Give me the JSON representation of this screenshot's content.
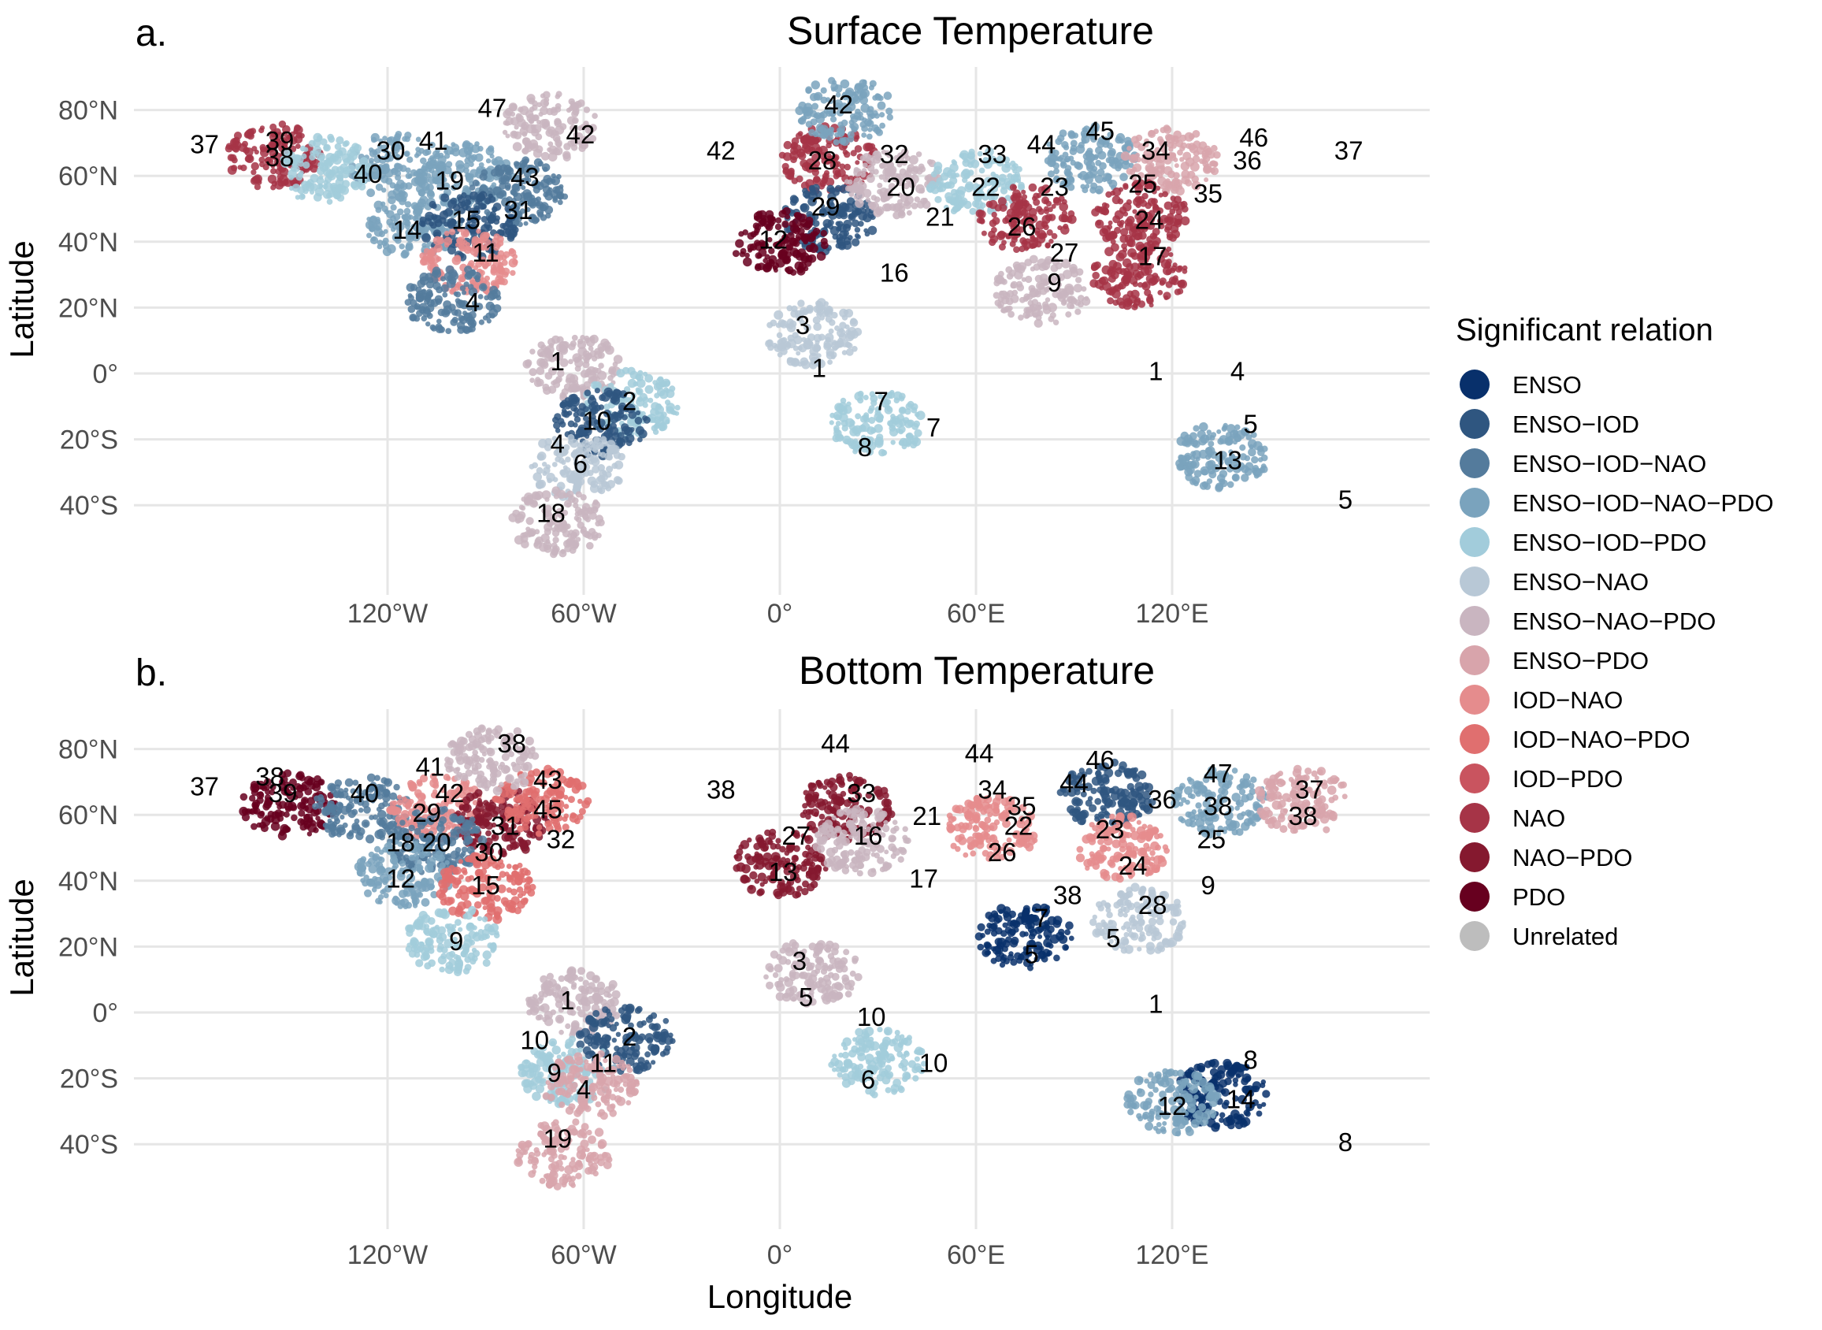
{
  "x_axis_title": "Longitude",
  "y_axis_title": "Latitude",
  "legend": {
    "title": "Significant relation",
    "items": [
      {
        "label": "ENSO",
        "color": "#08306b"
      },
      {
        "label": "ENSO−IOD",
        "color": "#2f5680"
      },
      {
        "label": "ENSO−IOD−NAO",
        "color": "#547b9c"
      },
      {
        "label": "ENSO−IOD−NAO−PDO",
        "color": "#7aa3bd"
      },
      {
        "label": "ENSO−IOD−PDO",
        "color": "#a2ccdb"
      },
      {
        "label": "ENSO−NAO",
        "color": "#b8c8d6"
      },
      {
        "label": "ENSO−NAO−PDO",
        "color": "#c9b5c0"
      },
      {
        "label": "ENSO−PDO",
        "color": "#d8a4ab"
      },
      {
        "label": "IOD−NAO",
        "color": "#e58c8d"
      },
      {
        "label": "IOD−NAO−PDO",
        "color": "#e06f6f"
      },
      {
        "label": "IOD−PDO",
        "color": "#c9545f"
      },
      {
        "label": "NAO",
        "color": "#a63447"
      },
      {
        "label": "NAO−PDO",
        "color": "#85192f"
      },
      {
        "label": "PDO",
        "color": "#67001f"
      },
      {
        "label": "Unrelated",
        "color": "#bdbdbd"
      }
    ]
  },
  "panels": [
    {
      "letter": "a.",
      "title": "Surface Temperature",
      "x_ticks": [
        {
          "lon": -120,
          "label": "120°W"
        },
        {
          "lon": -60,
          "label": "60°W"
        },
        {
          "lon": 0,
          "label": "0°"
        },
        {
          "lon": 60,
          "label": "60°E"
        },
        {
          "lon": 120,
          "label": "120°E"
        }
      ],
      "y_ticks": [
        {
          "lat": 80,
          "label": "80°N"
        },
        {
          "lat": 60,
          "label": "60°N"
        },
        {
          "lat": 40,
          "label": "40°N"
        },
        {
          "lat": 20,
          "label": "20°N"
        },
        {
          "lat": 0,
          "label": "0°"
        },
        {
          "lat": -20,
          "label": "20°S"
        },
        {
          "lat": -40,
          "label": "40°S"
        }
      ],
      "regions": [
        {
          "lon": -117,
          "lat": 63,
          "fill": "#7aa3bd"
        },
        {
          "lon": -96,
          "lat": 60,
          "fill": "#7aa3bd"
        },
        {
          "lon": -80,
          "lat": 55,
          "fill": "#547b9c"
        },
        {
          "lon": -112,
          "lat": 45,
          "fill": "#7aa3bd"
        },
        {
          "lon": -95,
          "lat": 45,
          "fill": "#2f5680"
        },
        {
          "lon": -95,
          "lat": 34,
          "fill": "#e58c8d"
        },
        {
          "lon": -100,
          "lat": 22,
          "fill": "#547b9c"
        },
        {
          "lon": -155,
          "lat": 66,
          "fill": "#a63447"
        },
        {
          "lon": -140,
          "lat": 62,
          "fill": "#a2ccdb"
        },
        {
          "lon": -70,
          "lat": 75,
          "fill": "#c9b5c0"
        },
        {
          "lon": -63,
          "lat": 2,
          "fill": "#c9b5c0"
        },
        {
          "lon": -45,
          "lat": -9,
          "fill": "#a2ccdb"
        },
        {
          "lon": -55,
          "lat": -15,
          "fill": "#2f5680"
        },
        {
          "lon": -62,
          "lat": -28,
          "fill": "#b8c8d6"
        },
        {
          "lon": -68,
          "lat": -45,
          "fill": "#c9b5c0"
        },
        {
          "lon": 15,
          "lat": 65,
          "fill": "#a63447"
        },
        {
          "lon": 15,
          "lat": 47,
          "fill": "#2f5680"
        },
        {
          "lon": 0,
          "lat": 40,
          "fill": "#67001f"
        },
        {
          "lon": 35,
          "lat": 58,
          "fill": "#c9b5c0"
        },
        {
          "lon": 60,
          "lat": 58,
          "fill": "#a2ccdb"
        },
        {
          "lon": 75,
          "lat": 47,
          "fill": "#a63447"
        },
        {
          "lon": 95,
          "lat": 65,
          "fill": "#7aa3bd"
        },
        {
          "lon": 120,
          "lat": 65,
          "fill": "#d8a4ab"
        },
        {
          "lon": 110,
          "lat": 48,
          "fill": "#a63447"
        },
        {
          "lon": 110,
          "lat": 30,
          "fill": "#a63447"
        },
        {
          "lon": 80,
          "lat": 25,
          "fill": "#c9b5c0"
        },
        {
          "lon": 10,
          "lat": 12,
          "fill": "#b8c8d6"
        },
        {
          "lon": 30,
          "lat": -15,
          "fill": "#a2ccdb"
        },
        {
          "lon": 135,
          "lat": -25,
          "fill": "#7aa3bd"
        },
        {
          "lon": 20,
          "lat": 80,
          "fill": "#7aa3bd"
        }
      ],
      "labels": [
        {
          "text": "37",
          "lon": -176,
          "lat": 69
        },
        {
          "text": "39",
          "lon": -153,
          "lat": 70
        },
        {
          "text": "38",
          "lon": -153,
          "lat": 65
        },
        {
          "text": "30",
          "lon": -119,
          "lat": 67
        },
        {
          "text": "41",
          "lon": -106,
          "lat": 70
        },
        {
          "text": "40",
          "lon": -126,
          "lat": 60
        },
        {
          "text": "19",
          "lon": -101,
          "lat": 58
        },
        {
          "text": "47",
          "lon": -88,
          "lat": 80
        },
        {
          "text": "42",
          "lon": -61,
          "lat": 72
        },
        {
          "text": "43",
          "lon": -78,
          "lat": 59
        },
        {
          "text": "31",
          "lon": -80,
          "lat": 49
        },
        {
          "text": "15",
          "lon": -96,
          "lat": 46
        },
        {
          "text": "14",
          "lon": -114,
          "lat": 43
        },
        {
          "text": "11",
          "lon": -90,
          "lat": 36
        },
        {
          "text": "4",
          "lon": -94,
          "lat": 21
        },
        {
          "text": "1",
          "lon": -68,
          "lat": 3
        },
        {
          "text": "2",
          "lon": -46,
          "lat": -9
        },
        {
          "text": "10",
          "lon": -56,
          "lat": -15
        },
        {
          "text": "4",
          "lon": -68,
          "lat": -22
        },
        {
          "text": "6",
          "lon": -61,
          "lat": -28
        },
        {
          "text": "18",
          "lon": -70,
          "lat": -43
        },
        {
          "text": "42",
          "lon": -18,
          "lat": 67
        },
        {
          "text": "42",
          "lon": 18,
          "lat": 81
        },
        {
          "text": "28",
          "lon": 13,
          "lat": 64
        },
        {
          "text": "29",
          "lon": 14,
          "lat": 50
        },
        {
          "text": "12",
          "lon": -2,
          "lat": 40
        },
        {
          "text": "32",
          "lon": 35,
          "lat": 66
        },
        {
          "text": "33",
          "lon": 65,
          "lat": 66
        },
        {
          "text": "44",
          "lon": 80,
          "lat": 69
        },
        {
          "text": "45",
          "lon": 98,
          "lat": 73
        },
        {
          "text": "34",
          "lon": 115,
          "lat": 67
        },
        {
          "text": "46",
          "lon": 145,
          "lat": 71
        },
        {
          "text": "36",
          "lon": 143,
          "lat": 64
        },
        {
          "text": "37",
          "lon": 174,
          "lat": 67
        },
        {
          "text": "20",
          "lon": 37,
          "lat": 56
        },
        {
          "text": "22",
          "lon": 63,
          "lat": 56
        },
        {
          "text": "23",
          "lon": 84,
          "lat": 56
        },
        {
          "text": "25",
          "lon": 111,
          "lat": 57
        },
        {
          "text": "35",
          "lon": 131,
          "lat": 54
        },
        {
          "text": "21",
          "lon": 49,
          "lat": 47
        },
        {
          "text": "26",
          "lon": 74,
          "lat": 44
        },
        {
          "text": "24",
          "lon": 113,
          "lat": 46
        },
        {
          "text": "27",
          "lon": 87,
          "lat": 36
        },
        {
          "text": "17",
          "lon": 114,
          "lat": 35
        },
        {
          "text": "16",
          "lon": 35,
          "lat": 30
        },
        {
          "text": "9",
          "lon": 84,
          "lat": 27
        },
        {
          "text": "3",
          "lon": 7,
          "lat": 14
        },
        {
          "text": "1",
          "lon": 12,
          "lat": 1
        },
        {
          "text": "7",
          "lon": 31,
          "lat": -9
        },
        {
          "text": "7",
          "lon": 47,
          "lat": -17
        },
        {
          "text": "8",
          "lon": 26,
          "lat": -23
        },
        {
          "text": "1",
          "lon": 115,
          "lat": 0
        },
        {
          "text": "4",
          "lon": 140,
          "lat": 0
        },
        {
          "text": "5",
          "lon": 144,
          "lat": -16
        },
        {
          "text": "13",
          "lon": 137,
          "lat": -27
        },
        {
          "text": "5",
          "lon": 173,
          "lat": -39
        }
      ]
    },
    {
      "letter": "b.",
      "title": "Bottom Temperature",
      "x_ticks": [
        {
          "lon": -120,
          "label": "120°W"
        },
        {
          "lon": -60,
          "label": "60°W"
        },
        {
          "lon": 0,
          "label": "0°"
        },
        {
          "lon": 60,
          "label": "60°E"
        },
        {
          "lon": 120,
          "label": "120°E"
        }
      ],
      "y_ticks": [
        {
          "lat": 80,
          "label": "80°N"
        },
        {
          "lat": 60,
          "label": "60°N"
        },
        {
          "lat": 40,
          "label": "40°N"
        },
        {
          "lat": 20,
          "label": "20°N"
        },
        {
          "lat": 0,
          "label": "0°"
        },
        {
          "lat": -20,
          "label": "20°S"
        },
        {
          "lat": -40,
          "label": "40°S"
        }
      ],
      "regions": [
        {
          "lon": -150,
          "lat": 63,
          "fill": "#67001f"
        },
        {
          "lon": -128,
          "lat": 62,
          "fill": "#547b9c"
        },
        {
          "lon": -105,
          "lat": 62,
          "fill": "#e58c8d"
        },
        {
          "lon": -85,
          "lat": 58,
          "fill": "#85192f"
        },
        {
          "lon": -73,
          "lat": 64,
          "fill": "#e06f6f"
        },
        {
          "lon": -105,
          "lat": 52,
          "fill": "#547b9c"
        },
        {
          "lon": -115,
          "lat": 42,
          "fill": "#7aa3bd"
        },
        {
          "lon": -90,
          "lat": 38,
          "fill": "#e06f6f"
        },
        {
          "lon": -100,
          "lat": 22,
          "fill": "#a2ccdb"
        },
        {
          "lon": -88,
          "lat": 77,
          "fill": "#c9b5c0"
        },
        {
          "lon": -63,
          "lat": 3,
          "fill": "#c9b5c0"
        },
        {
          "lon": -47,
          "lat": -8,
          "fill": "#2f5680"
        },
        {
          "lon": -65,
          "lat": -18,
          "fill": "#a2ccdb"
        },
        {
          "lon": -58,
          "lat": -22,
          "fill": "#d8a4ab"
        },
        {
          "lon": -66,
          "lat": -43,
          "fill": "#d8a4ab"
        },
        {
          "lon": 20,
          "lat": 62,
          "fill": "#85192f"
        },
        {
          "lon": 0,
          "lat": 45,
          "fill": "#85192f"
        },
        {
          "lon": 25,
          "lat": 52,
          "fill": "#c9b5c0"
        },
        {
          "lon": 65,
          "lat": 56,
          "fill": "#e58c8d"
        },
        {
          "lon": 100,
          "lat": 66,
          "fill": "#2f5680"
        },
        {
          "lon": 135,
          "lat": 64,
          "fill": "#7aa3bd"
        },
        {
          "lon": 160,
          "lat": 64,
          "fill": "#d8a4ab"
        },
        {
          "lon": 105,
          "lat": 50,
          "fill": "#e58c8d"
        },
        {
          "lon": 75,
          "lat": 23,
          "fill": "#08306b"
        },
        {
          "lon": 110,
          "lat": 28,
          "fill": "#b8c8d6"
        },
        {
          "lon": 10,
          "lat": 12,
          "fill": "#c9b5c0"
        },
        {
          "lon": 30,
          "lat": -15,
          "fill": "#a2ccdb"
        },
        {
          "lon": 135,
          "lat": -25,
          "fill": "#08306b"
        },
        {
          "lon": 120,
          "lat": -27,
          "fill": "#7aa3bd"
        }
      ],
      "labels": [
        {
          "text": "37",
          "lon": -176,
          "lat": 68
        },
        {
          "text": "38",
          "lon": -156,
          "lat": 71
        },
        {
          "text": "39",
          "lon": -152,
          "lat": 66
        },
        {
          "text": "40",
          "lon": -127,
          "lat": 66
        },
        {
          "text": "41",
          "lon": -107,
          "lat": 74
        },
        {
          "text": "42",
          "lon": -101,
          "lat": 66
        },
        {
          "text": "38",
          "lon": -82,
          "lat": 81
        },
        {
          "text": "43",
          "lon": -71,
          "lat": 70
        },
        {
          "text": "38",
          "lon": -18,
          "lat": 67
        },
        {
          "text": "29",
          "lon": -108,
          "lat": 60
        },
        {
          "text": "45",
          "lon": -71,
          "lat": 61
        },
        {
          "text": "31",
          "lon": -84,
          "lat": 56
        },
        {
          "text": "32",
          "lon": -67,
          "lat": 52
        },
        {
          "text": "18",
          "lon": -116,
          "lat": 51
        },
        {
          "text": "20",
          "lon": -105,
          "lat": 51
        },
        {
          "text": "30",
          "lon": -89,
          "lat": 48
        },
        {
          "text": "12",
          "lon": -116,
          "lat": 40
        },
        {
          "text": "15",
          "lon": -90,
          "lat": 38
        },
        {
          "text": "9",
          "lon": -99,
          "lat": 21
        },
        {
          "text": "1",
          "lon": -65,
          "lat": 3
        },
        {
          "text": "2",
          "lon": -46,
          "lat": -8
        },
        {
          "text": "10",
          "lon": -75,
          "lat": -9
        },
        {
          "text": "9",
          "lon": -69,
          "lat": -19
        },
        {
          "text": "11",
          "lon": -54,
          "lat": -16
        },
        {
          "text": "4",
          "lon": -60,
          "lat": -24
        },
        {
          "text": "19",
          "lon": -68,
          "lat": -39
        },
        {
          "text": "44",
          "lon": 17,
          "lat": 81
        },
        {
          "text": "44",
          "lon": 61,
          "lat": 78
        },
        {
          "text": "33",
          "lon": 25,
          "lat": 66
        },
        {
          "text": "34",
          "lon": 65,
          "lat": 67
        },
        {
          "text": "44",
          "lon": 90,
          "lat": 69
        },
        {
          "text": "46",
          "lon": 98,
          "lat": 76
        },
        {
          "text": "47",
          "lon": 134,
          "lat": 72
        },
        {
          "text": "37",
          "lon": 162,
          "lat": 67
        },
        {
          "text": "36",
          "lon": 117,
          "lat": 64
        },
        {
          "text": "38",
          "lon": 134,
          "lat": 62
        },
        {
          "text": "38",
          "lon": 160,
          "lat": 59
        },
        {
          "text": "35",
          "lon": 74,
          "lat": 62
        },
        {
          "text": "21",
          "lon": 45,
          "lat": 59
        },
        {
          "text": "22",
          "lon": 73,
          "lat": 56
        },
        {
          "text": "23",
          "lon": 101,
          "lat": 55
        },
        {
          "text": "25",
          "lon": 132,
          "lat": 52
        },
        {
          "text": "27",
          "lon": 5,
          "lat": 53
        },
        {
          "text": "16",
          "lon": 27,
          "lat": 53
        },
        {
          "text": "26",
          "lon": 68,
          "lat": 48
        },
        {
          "text": "24",
          "lon": 108,
          "lat": 44
        },
        {
          "text": "13",
          "lon": 1,
          "lat": 42
        },
        {
          "text": "17",
          "lon": 44,
          "lat": 40
        },
        {
          "text": "9",
          "lon": 131,
          "lat": 38
        },
        {
          "text": "38",
          "lon": 88,
          "lat": 35
        },
        {
          "text": "28",
          "lon": 114,
          "lat": 32
        },
        {
          "text": "7",
          "lon": 80,
          "lat": 28
        },
        {
          "text": "5",
          "lon": 102,
          "lat": 22
        },
        {
          "text": "5",
          "lon": 77,
          "lat": 17
        },
        {
          "text": "3",
          "lon": 6,
          "lat": 15
        },
        {
          "text": "5",
          "lon": 8,
          "lat": 4
        },
        {
          "text": "1",
          "lon": 115,
          "lat": 2
        },
        {
          "text": "10",
          "lon": 28,
          "lat": -2
        },
        {
          "text": "10",
          "lon": 47,
          "lat": -16
        },
        {
          "text": "6",
          "lon": 27,
          "lat": -21
        },
        {
          "text": "8",
          "lon": 144,
          "lat": -15
        },
        {
          "text": "12",
          "lon": 120,
          "lat": -29
        },
        {
          "text": "14",
          "lon": 141,
          "lat": -27
        },
        {
          "text": "8",
          "lon": 173,
          "lat": -40
        }
      ]
    }
  ]
}
